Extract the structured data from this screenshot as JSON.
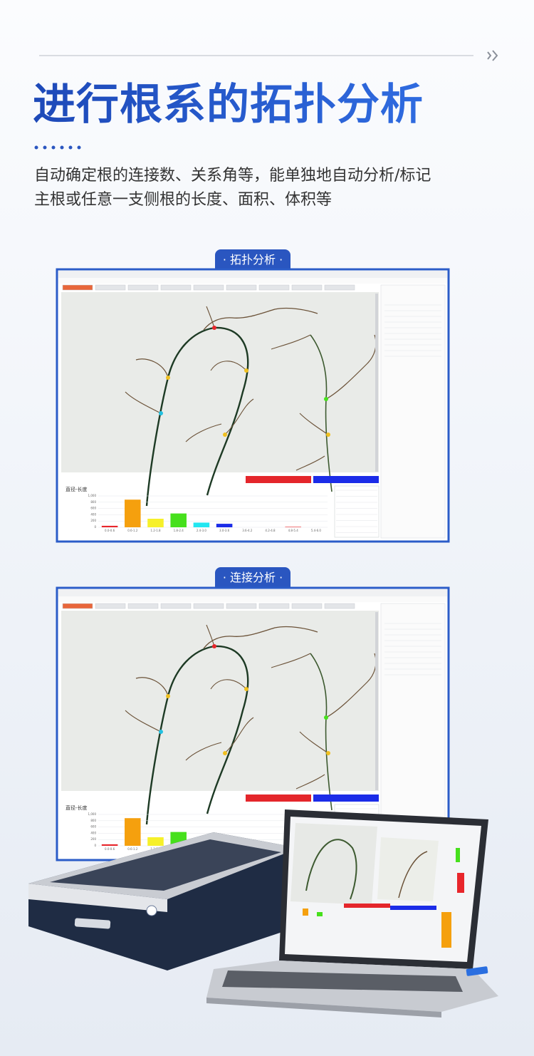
{
  "header": {
    "title": "进行根系的拓扑分析",
    "description": [
      "自动确定根的连接数、关系角等，能单独地自动分析/标记",
      "主根或任意一支侧根的长度、面积、体积等"
    ]
  },
  "sections": [
    {
      "badge": "· 拓扑分析 ·"
    },
    {
      "badge": "· 连接分析 ·"
    }
  ],
  "chart_data": {
    "type": "bar",
    "title": "直径-长度",
    "categories": [
      "0.0-0.6",
      "0.6-1.2",
      "1.2-1.8",
      "1.8-2.4",
      "2.4-3.0",
      "3.0-3.6",
      "3.6-4.2",
      "4.2-4.8",
      "4.8-5.4",
      "5.4-6.0"
    ],
    "values": [
      47.7,
      881.8,
      272.6,
      440.8,
      149.2,
      111.5,
      0,
      0,
      14.0,
      0
    ],
    "colors": [
      "#e8262b",
      "#f5a00e",
      "#f6f02a",
      "#46e01c",
      "#22e6f0",
      "#1b2ce8",
      "#999999",
      "#999999",
      "#e8262b",
      "#999999"
    ],
    "ylim": [
      0,
      1000
    ],
    "yticks": [
      0,
      200,
      400,
      600,
      800,
      {
        "value": 1000,
        "label": "1,000"
      }
    ],
    "grid": true
  }
}
